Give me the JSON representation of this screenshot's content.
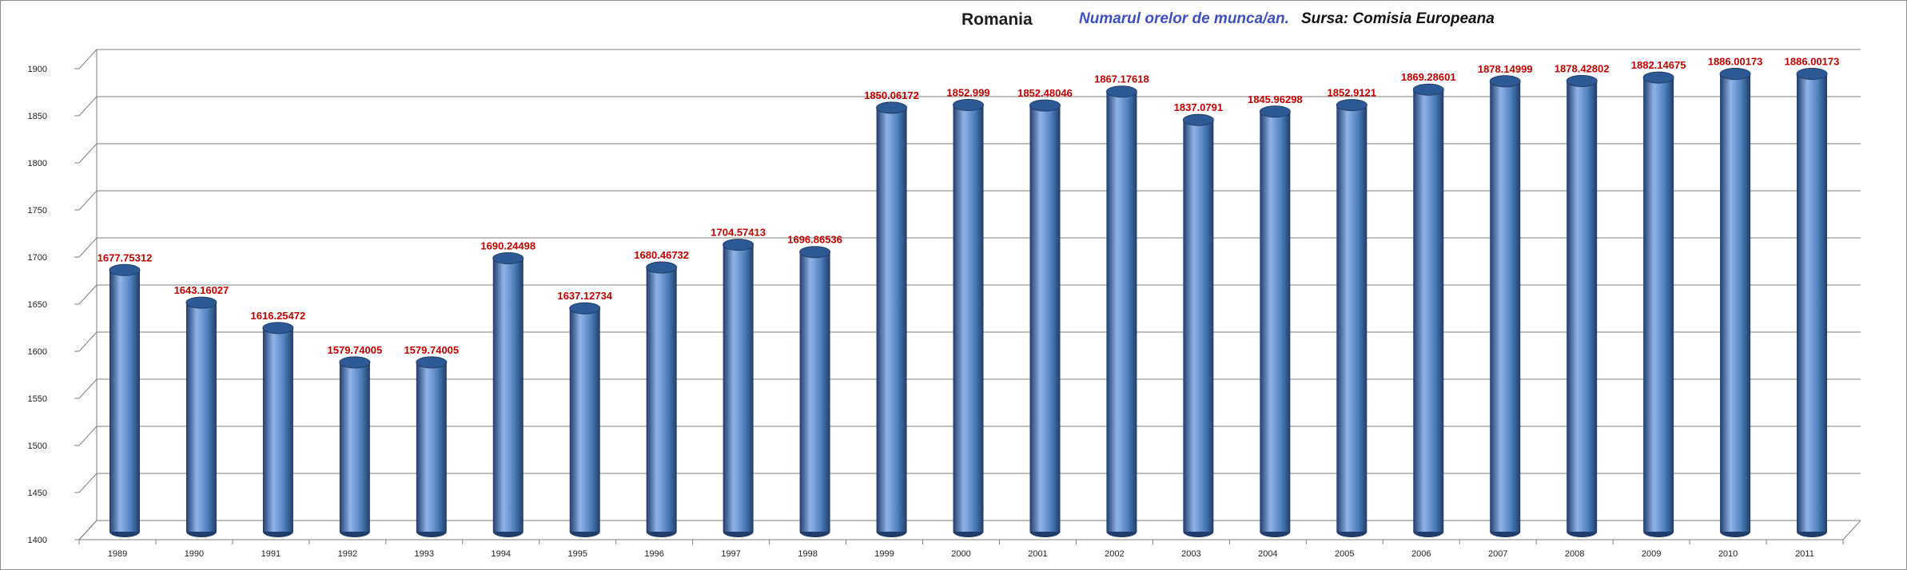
{
  "chart_data": {
    "type": "bar",
    "title": "Romania",
    "subtitle": "Numarul orelor de munca/an.",
    "source": "Sursa: Comisia Europeana",
    "categories": [
      "1989",
      "1990",
      "1991",
      "1992",
      "1993",
      "1994",
      "1995",
      "1996",
      "1997",
      "1998",
      "1999",
      "2000",
      "2001",
      "2002",
      "2003",
      "2004",
      "2005",
      "2006",
      "2007",
      "2008",
      "2009",
      "2010",
      "2011"
    ],
    "values": [
      1677.75312,
      1643.16027,
      1616.25472,
      1579.74005,
      1579.74005,
      1690.24498,
      1637.12734,
      1680.46732,
      1704.57413,
      1696.86536,
      1850.06172,
      1852.999,
      1852.48046,
      1867.17618,
      1837.0791,
      1845.96298,
      1852.9121,
      1869.28601,
      1878.14999,
      1878.42802,
      1882.14675,
      1886.00173,
      1886.00173
    ],
    "value_labels": [
      "1677.75312",
      "1643.16027",
      "1616.25472",
      "1579.74005",
      "1579.74005",
      "1690.24498",
      "1637.12734",
      "1680.46732",
      "1704.57413",
      "1696.86536",
      "1850.06172",
      "1852.999",
      "1852.48046",
      "1867.17618",
      "1837.0791",
      "1845.96298",
      "1852.9121",
      "1869.28601",
      "1878.14999",
      "1878.42802",
      "1882.14675",
      "1886.00173",
      "1886.00173"
    ],
    "ylim": [
      1400,
      1900
    ],
    "yticks": [
      "1400",
      "1450",
      "1500",
      "1550",
      "1600",
      "1650",
      "1700",
      "1750",
      "1800",
      "1850",
      "1900"
    ],
    "xlabel": "",
    "ylabel": "",
    "grid": true,
    "legend": "none",
    "colors": {
      "bar": "#4f81bd",
      "bar_dark": "#1f3d6a",
      "bar_light": "#8fb5e8",
      "data_label": "#c00000",
      "subtitle": "#3f4fbf"
    }
  }
}
